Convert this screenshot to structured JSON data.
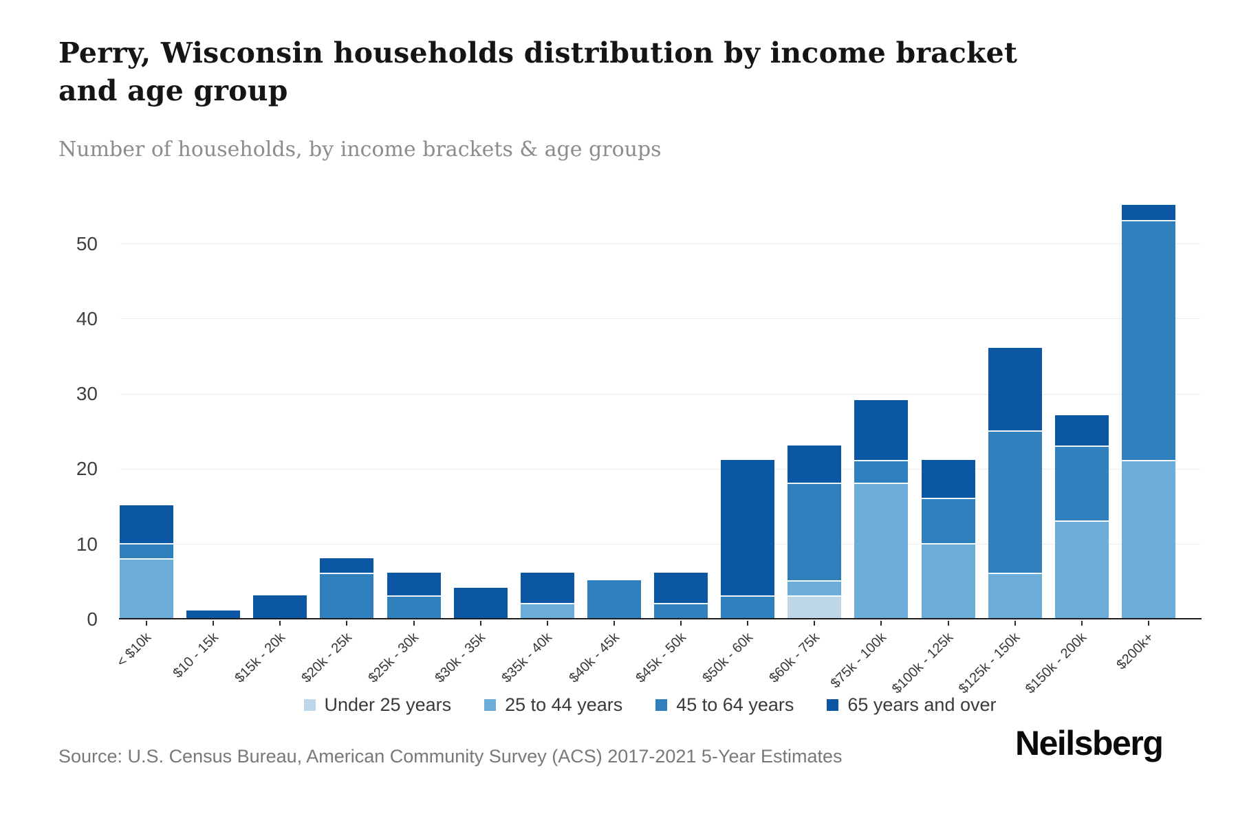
{
  "header": {
    "title": "Perry, Wisconsin households distribution by income bracket and age group",
    "subtitle": "Number of households, by income brackets & age groups"
  },
  "footer": {
    "source": "Source: U.S. Census Bureau, American Community Survey (ACS) 2017-2021 5-Year Estimates",
    "brand": "Neilsberg"
  },
  "chart_data": {
    "type": "bar",
    "stacked": true,
    "title": "Perry, Wisconsin households distribution by income bracket and age group",
    "xlabel": "",
    "ylabel": "",
    "ylim": [
      0,
      55
    ],
    "yticks": [
      0,
      10,
      20,
      30,
      40,
      50
    ],
    "grid": true,
    "legend_position": "bottom",
    "categories": [
      "< $10k",
      "$10 - 15k",
      "$15k - 20k",
      "$20k - 25k",
      "$25k - 30k",
      "$30k - 35k",
      "$35k - 40k",
      "$40k - 45k",
      "$45k - 50k",
      "$50k - 60k",
      "$60k - 75k",
      "$75k - 100k",
      "$100k - 125k",
      "$125k - 150k",
      "$150k - 200k",
      "$200k+"
    ],
    "series": [
      {
        "name": "Under 25 years",
        "color": "#bdd7e8",
        "values": [
          0,
          0,
          0,
          0,
          0,
          0,
          0,
          0,
          0,
          0,
          3,
          0,
          0,
          0,
          0,
          0
        ]
      },
      {
        "name": "25 to 44 years",
        "color": "#6cacd8",
        "values": [
          8,
          0,
          0,
          0,
          0,
          0,
          2,
          0,
          0,
          0,
          2,
          18,
          10,
          6,
          13,
          21
        ]
      },
      {
        "name": "45 to 64 years",
        "color": "#2f80bd",
        "values": [
          2,
          0,
          0,
          6,
          3,
          0,
          0,
          5,
          2,
          3,
          13,
          3,
          6,
          19,
          10,
          32
        ]
      },
      {
        "name": "65 years and over",
        "color": "#0b57a4",
        "values": [
          5,
          1,
          3,
          2,
          3,
          4,
          4,
          0,
          4,
          18,
          5,
          8,
          5,
          11,
          4,
          2
        ]
      }
    ],
    "totals": [
      15,
      1,
      3,
      8,
      6,
      4,
      6,
      5,
      6,
      21,
      23,
      29,
      21,
      36,
      27,
      55
    ],
    "colors": {
      "gridline": "#ececec",
      "axis_line": "#1b1b1b",
      "axis_text": "#404040",
      "title_text": "#151515",
      "subtitle_text": "#8c8c8c",
      "source_text": "#787878"
    }
  }
}
